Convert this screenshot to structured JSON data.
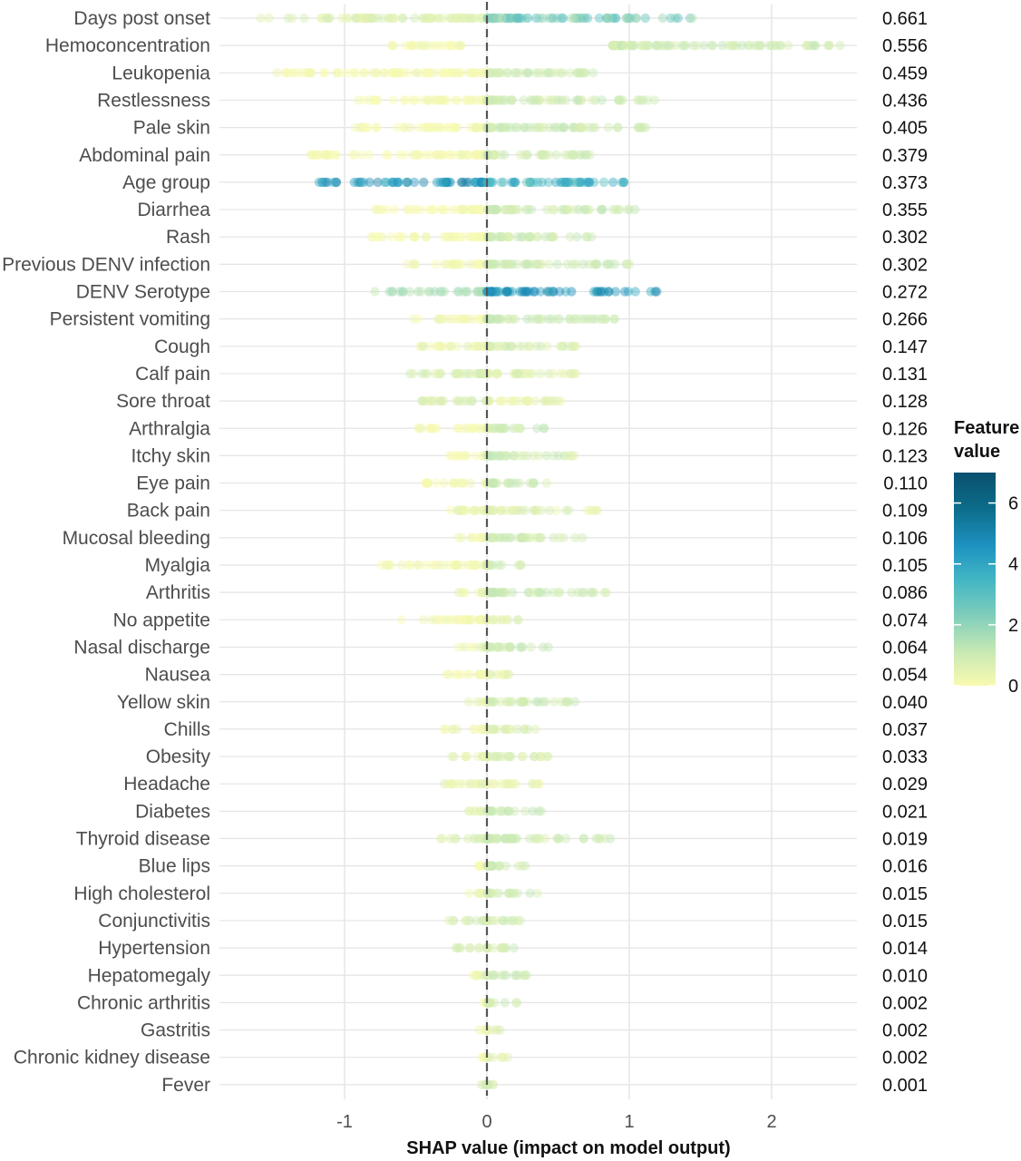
{
  "chart_data": {
    "type": "scatter",
    "subtype": "shap-beeswarm",
    "title": "",
    "xlabel": "SHAP value (impact on model output)",
    "ylabel": "",
    "xlim": [
      -1.88,
      2.5
    ],
    "x_ticks": [
      -1,
      0,
      1,
      2
    ],
    "x_tick_labels": [
      "-1",
      "0",
      "1",
      "2"
    ],
    "grid": true,
    "zero_line": "dashed",
    "legend": {
      "title": "Feature value",
      "position": "right",
      "min": 0,
      "max": 7,
      "ticks": [
        0,
        2,
        4,
        6
      ],
      "colors": [
        "#f9fab0",
        "#c7e9b4",
        "#7fcdbb",
        "#41b6c4",
        "#1d91c0",
        "#0c6d8a",
        "#09506f"
      ]
    },
    "features": [
      {
        "name": "Days post onset",
        "importance": "0.661",
        "neg_range": [
          -1.6,
          0
        ],
        "pos_range": [
          0,
          1.5
        ],
        "neg_val": 0.6,
        "pos_val": 2.3
      },
      {
        "name": "Hemoconcentration",
        "importance": "0.556",
        "neg_range": [
          -0.68,
          -0.18
        ],
        "pos_range": [
          0.88,
          2.5
        ],
        "neg_val": 0,
        "pos_val": 1
      },
      {
        "name": "Leukopenia",
        "importance": "0.459",
        "neg_range": [
          -1.5,
          0
        ],
        "pos_range": [
          0,
          0.77
        ],
        "neg_val": 0,
        "pos_val": 1
      },
      {
        "name": "Restlessness",
        "importance": "0.436",
        "neg_range": [
          -0.95,
          0
        ],
        "pos_range": [
          0,
          1.22
        ],
        "neg_val": 0,
        "pos_val": 1
      },
      {
        "name": "Pale skin",
        "importance": "0.405",
        "neg_range": [
          -0.93,
          0
        ],
        "pos_range": [
          0,
          1.25
        ],
        "neg_val": 0,
        "pos_val": 1
      },
      {
        "name": "Abdominal pain",
        "importance": "0.379",
        "neg_range": [
          -1.3,
          0
        ],
        "pos_range": [
          0,
          0.82
        ],
        "neg_val": 0,
        "pos_val": 1
      },
      {
        "name": "Age group",
        "importance": "0.373",
        "neg_range": [
          -1.18,
          0
        ],
        "pos_range": [
          0,
          0.97
        ],
        "neg_val": 4.5,
        "pos_val": 3.5
      },
      {
        "name": "Diarrhea",
        "importance": "0.355",
        "neg_range": [
          -0.8,
          0
        ],
        "pos_range": [
          0,
          1.1
        ],
        "neg_val": 0,
        "pos_val": 1
      },
      {
        "name": "Rash",
        "importance": "0.302",
        "neg_range": [
          -0.85,
          0
        ],
        "pos_range": [
          0,
          0.77
        ],
        "neg_val": 0,
        "pos_val": 1
      },
      {
        "name": "Previous DENV infection",
        "importance": "0.302",
        "neg_range": [
          -0.58,
          0
        ],
        "pos_range": [
          0,
          1.02
        ],
        "neg_val": 0,
        "pos_val": 1
      },
      {
        "name": "DENV Serotype",
        "importance": "0.272",
        "neg_range": [
          -0.8,
          0
        ],
        "pos_range": [
          0,
          1.23
        ],
        "neg_val": 1.5,
        "pos_val": 4.5
      },
      {
        "name": "Persistent vomiting",
        "importance": "0.266",
        "neg_range": [
          -0.53,
          0
        ],
        "pos_range": [
          0,
          0.97
        ],
        "neg_val": 0,
        "pos_val": 1
      },
      {
        "name": "Cough",
        "importance": "0.147",
        "neg_range": [
          -0.48,
          0
        ],
        "pos_range": [
          0,
          0.65
        ],
        "neg_val": 0.4,
        "pos_val": 0.8
      },
      {
        "name": "Calf pain",
        "importance": "0.131",
        "neg_range": [
          -0.57,
          0
        ],
        "pos_range": [
          0,
          0.63
        ],
        "neg_val": 0.7,
        "pos_val": 0.5
      },
      {
        "name": "Sore throat",
        "importance": "0.128",
        "neg_range": [
          -0.47,
          0
        ],
        "pos_range": [
          0,
          0.57
        ],
        "neg_val": 0.8,
        "pos_val": 0.4
      },
      {
        "name": "Arthralgia",
        "importance": "0.126",
        "neg_range": [
          -0.5,
          0
        ],
        "pos_range": [
          0,
          0.43
        ],
        "neg_val": 0,
        "pos_val": 1
      },
      {
        "name": "Itchy skin",
        "importance": "0.123",
        "neg_range": [
          -0.28,
          0
        ],
        "pos_range": [
          0,
          0.62
        ],
        "neg_val": 0,
        "pos_val": 1
      },
      {
        "name": "Eye pain",
        "importance": "0.110",
        "neg_range": [
          -0.45,
          0
        ],
        "pos_range": [
          0,
          0.42
        ],
        "neg_val": 0,
        "pos_val": 1
      },
      {
        "name": "Back pain",
        "importance": "0.109",
        "neg_range": [
          -0.38,
          0
        ],
        "pos_range": [
          0,
          0.8
        ],
        "neg_val": 0.3,
        "pos_val": 0.6
      },
      {
        "name": "Mucosal bleeding",
        "importance": "0.106",
        "neg_range": [
          -0.22,
          0
        ],
        "pos_range": [
          0,
          0.7
        ],
        "neg_val": 0,
        "pos_val": 1
      },
      {
        "name": "Myalgia",
        "importance": "0.105",
        "neg_range": [
          -0.77,
          0
        ],
        "pos_range": [
          0,
          0.28
        ],
        "neg_val": 0,
        "pos_val": 1
      },
      {
        "name": "Arthritis",
        "importance": "0.086",
        "neg_range": [
          -0.25,
          0
        ],
        "pos_range": [
          0,
          0.87
        ],
        "neg_val": 0.3,
        "pos_val": 1
      },
      {
        "name": "No appetite",
        "importance": "0.074",
        "neg_range": [
          -0.65,
          0
        ],
        "pos_range": [
          0,
          0.24
        ],
        "neg_val": 0,
        "pos_val": 0.6
      },
      {
        "name": "Nasal discharge",
        "importance": "0.064",
        "neg_range": [
          -0.2,
          0
        ],
        "pos_range": [
          0,
          0.46
        ],
        "neg_val": 0.3,
        "pos_val": 1
      },
      {
        "name": "Nausea",
        "importance": "0.054",
        "neg_range": [
          -0.3,
          0
        ],
        "pos_range": [
          0,
          0.22
        ],
        "neg_val": 0,
        "pos_val": 0.5
      },
      {
        "name": "Yellow skin",
        "importance": "0.040",
        "neg_range": [
          -0.15,
          0
        ],
        "pos_range": [
          0,
          0.62
        ],
        "neg_val": 0.2,
        "pos_val": 1
      },
      {
        "name": "Chills",
        "importance": "0.037",
        "neg_range": [
          -0.3,
          0
        ],
        "pos_range": [
          0,
          0.36
        ],
        "neg_val": 0.2,
        "pos_val": 0.6
      },
      {
        "name": "Obesity",
        "importance": "0.033",
        "neg_range": [
          -0.28,
          0
        ],
        "pos_range": [
          0,
          0.45
        ],
        "neg_val": 0.5,
        "pos_val": 0.8
      },
      {
        "name": "Headache",
        "importance": "0.029",
        "neg_range": [
          -0.35,
          0
        ],
        "pos_range": [
          0,
          0.37
        ],
        "neg_val": 0.4,
        "pos_val": 0.4
      },
      {
        "name": "Diabetes",
        "importance": "0.021",
        "neg_range": [
          -0.15,
          0
        ],
        "pos_range": [
          0,
          0.43
        ],
        "neg_val": 0.4,
        "pos_val": 1
      },
      {
        "name": "Thyroid disease",
        "importance": "0.019",
        "neg_range": [
          -0.35,
          0
        ],
        "pos_range": [
          0,
          0.9
        ],
        "neg_val": 0.8,
        "pos_val": 1
      },
      {
        "name": "Blue lips",
        "importance": "0.016",
        "neg_range": [
          -0.08,
          0
        ],
        "pos_range": [
          0,
          0.4
        ],
        "neg_val": 0,
        "pos_val": 1
      },
      {
        "name": "High cholesterol",
        "importance": "0.015",
        "neg_range": [
          -0.15,
          0
        ],
        "pos_range": [
          0,
          0.37
        ],
        "neg_val": 0.5,
        "pos_val": 1
      },
      {
        "name": "Conjunctivitis",
        "importance": "0.015",
        "neg_range": [
          -0.27,
          0
        ],
        "pos_range": [
          0,
          0.24
        ],
        "neg_val": 0.8,
        "pos_val": 0.9
      },
      {
        "name": "Hypertension",
        "importance": "0.014",
        "neg_range": [
          -0.22,
          0
        ],
        "pos_range": [
          0,
          0.24
        ],
        "neg_val": 0.8,
        "pos_val": 0.9
      },
      {
        "name": "Hepatomegaly",
        "importance": "0.010",
        "neg_range": [
          -0.15,
          0
        ],
        "pos_range": [
          0,
          0.3
        ],
        "neg_val": 0.3,
        "pos_val": 1
      },
      {
        "name": "Chronic arthritis",
        "importance": "0.002",
        "neg_range": [
          -0.05,
          0
        ],
        "pos_range": [
          0,
          0.22
        ],
        "neg_val": 0,
        "pos_val": 1
      },
      {
        "name": "Gastritis",
        "importance": "0.002",
        "neg_range": [
          -0.07,
          0
        ],
        "pos_range": [
          0,
          0.12
        ],
        "neg_val": 0,
        "pos_val": 0.5
      },
      {
        "name": "Chronic kidney disease",
        "importance": "0.002",
        "neg_range": [
          -0.04,
          0
        ],
        "pos_range": [
          0,
          0.15
        ],
        "neg_val": 0,
        "pos_val": 0.6
      },
      {
        "name": "Fever",
        "importance": "0.001",
        "neg_range": [
          -0.05,
          0
        ],
        "pos_range": [
          0,
          0.05
        ],
        "neg_val": 1,
        "pos_val": 1
      }
    ]
  }
}
